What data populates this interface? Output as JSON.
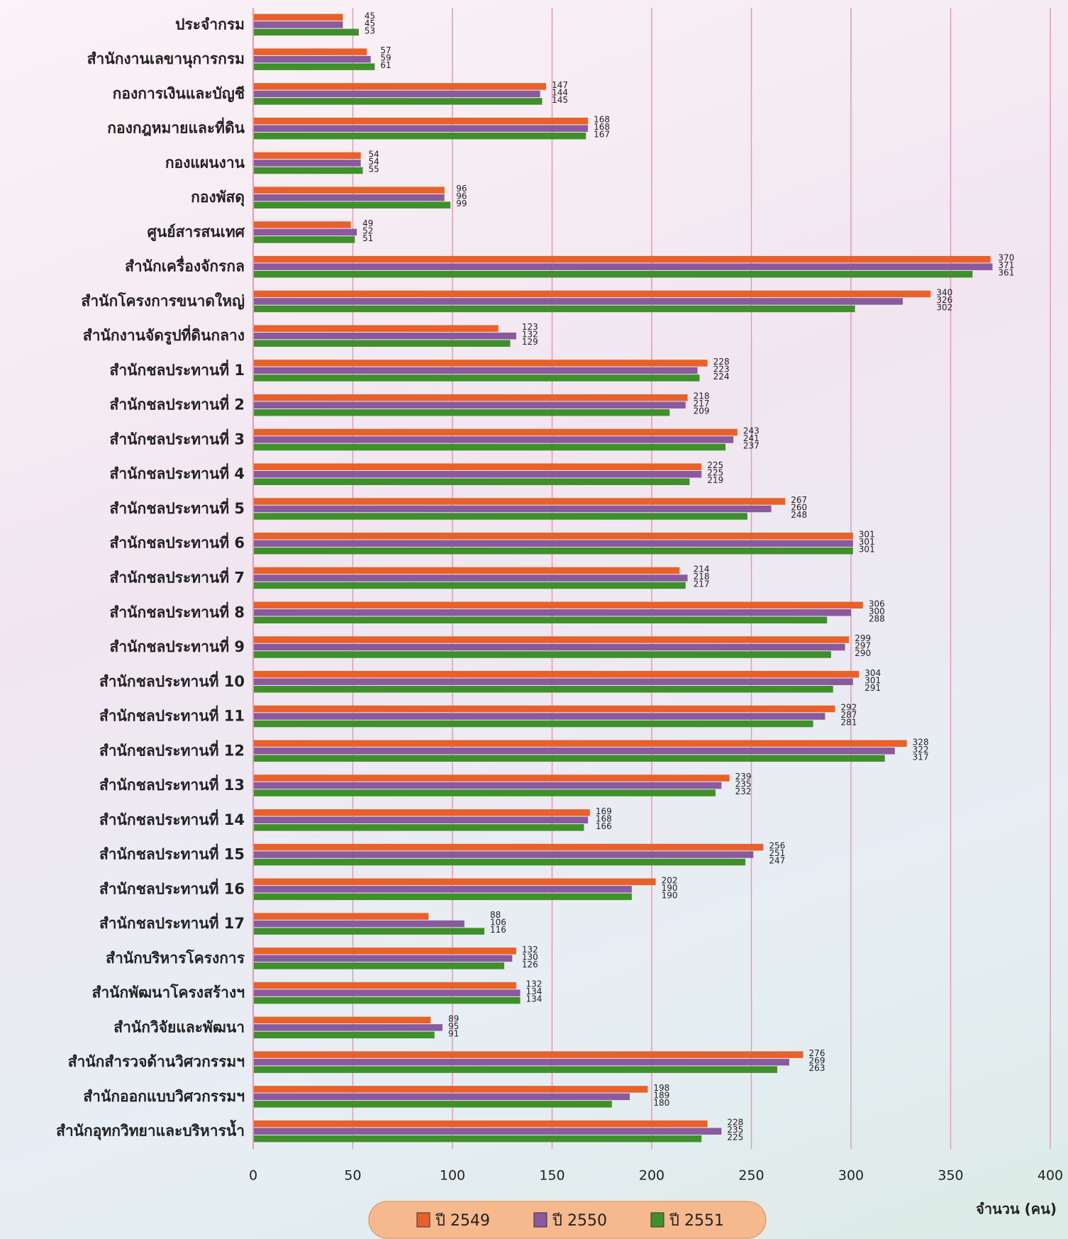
{
  "chart_data": {
    "type": "hbar",
    "categories": [
      "ประจำกรม",
      "สำนักงานเลขานุการกรม",
      "กองการเงินและบัญชี",
      "กองกฎหมายและที่ดิน",
      "กองแผนงาน",
      "กองพัสดุ",
      "ศูนย์สารสนเทศ",
      "สำนักเครื่องจักรกล",
      "สำนักโครงการขนาดใหญ่",
      "สำนักงานจัดรูปที่ดินกลาง",
      "สำนักชลประทานที่ 1",
      "สำนักชลประทานที่ 2",
      "สำนักชลประทานที่ 3",
      "สำนักชลประทานที่ 4",
      "สำนักชลประทานที่ 5",
      "สำนักชลประทานที่ 6",
      "สำนักชลประทานที่ 7",
      "สำนักชลประทานที่ 8",
      "สำนักชลประทานที่ 9",
      "สำนักชลประทานที่ 10",
      "สำนักชลประทานที่ 11",
      "สำนักชลประทานที่ 12",
      "สำนักชลประทานที่ 13",
      "สำนักชลประทานที่ 14",
      "สำนักชลประทานที่ 15",
      "สำนักชลประทานที่ 16",
      "สำนักชลประทานที่ 17",
      "สำนักบริหารโครงการ",
      "สำนักพัฒนาโครงสร้างฯ",
      "สำนักวิจัยและพัฒนา",
      "สำนักสำรวจด้านวิศวกรรมฯ",
      "สำนักออกแบบวิศวกรรมฯ",
      "สำนักอุทกวิทยาและบริหารน้ำ"
    ],
    "series": [
      {
        "name": "ปี 2549",
        "color": "#e8602a",
        "values": [
          45,
          57,
          147,
          168,
          54,
          96,
          49,
          370,
          340,
          123,
          228,
          218,
          243,
          225,
          267,
          301,
          214,
          306,
          299,
          304,
          292,
          328,
          239,
          169,
          256,
          202,
          88,
          132,
          132,
          89,
          276,
          198,
          228
        ]
      },
      {
        "name": "ปี 2550",
        "color": "#8a5a9e",
        "values": [
          45,
          59,
          144,
          168,
          54,
          96,
          52,
          371,
          326,
          132,
          223,
          217,
          241,
          225,
          260,
          301,
          218,
          300,
          297,
          301,
          287,
          322,
          235,
          168,
          251,
          190,
          106,
          130,
          134,
          95,
          269,
          189,
          235
        ]
      },
      {
        "name": "ปี 2551",
        "color": "#3f8f2a",
        "values": [
          53,
          61,
          145,
          167,
          55,
          99,
          51,
          361,
          302,
          129,
          224,
          209,
          237,
          219,
          248,
          301,
          217,
          288,
          290,
          291,
          281,
          317,
          232,
          166,
          247,
          190,
          116,
          126,
          134,
          91,
          263,
          180,
          225
        ]
      }
    ],
    "xlabel": "จำนวน (คน)",
    "xlim": [
      0,
      400
    ],
    "xticks": [
      0,
      50,
      100,
      150,
      200,
      250,
      300,
      350,
      400
    ],
    "grid": true
  }
}
